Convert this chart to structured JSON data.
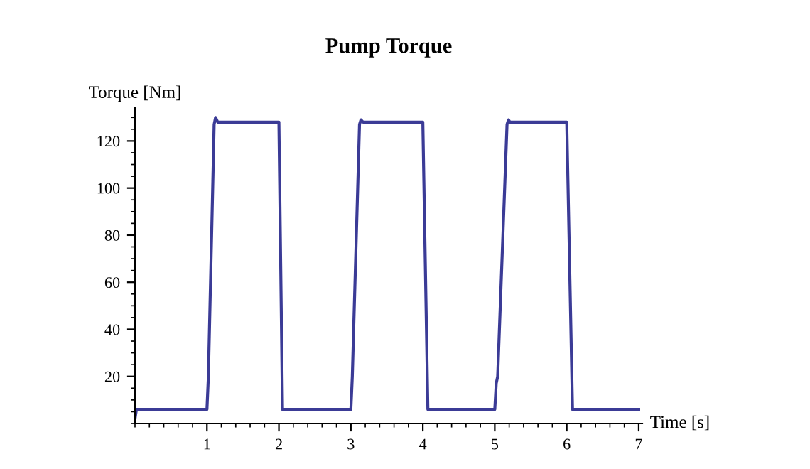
{
  "chart_data": {
    "type": "line",
    "title": "Pump Torque",
    "xlabel": "Time [s]",
    "ylabel": "Torque [Nm]",
    "xlim": [
      0,
      7.05
    ],
    "ylim": [
      0,
      134
    ],
    "xticks": [
      1,
      2,
      3,
      4,
      5,
      6,
      7
    ],
    "yticks": [
      20,
      40,
      60,
      80,
      100,
      120
    ],
    "marker": "none",
    "line_style": "solid",
    "series": [
      {
        "color": "#3b3b96",
        "x": [
          0,
          0.02,
          1.0,
          1.02,
          1.1,
          1.12,
          1.15,
          2.0,
          2.05,
          3.0,
          3.02,
          3.12,
          3.14,
          3.17,
          4.0,
          4.07,
          5.0,
          5.02,
          5.04,
          5.17,
          5.19,
          5.21,
          6.0,
          6.08,
          7.0
        ],
        "values": [
          2,
          6,
          6,
          20,
          127,
          130,
          128,
          128,
          6,
          6,
          20,
          127,
          129,
          128,
          128,
          6,
          6,
          17,
          20,
          127,
          129,
          128,
          128,
          6,
          6
        ]
      }
    ]
  }
}
